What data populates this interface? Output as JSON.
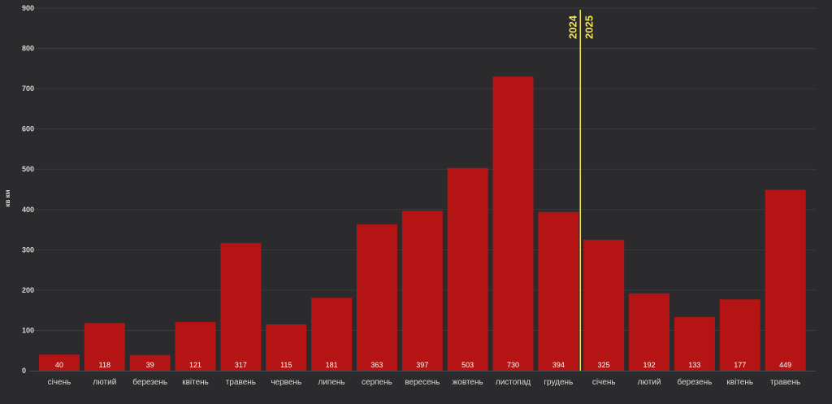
{
  "chart_data": {
    "type": "bar",
    "title": "",
    "ylabel": "кв км",
    "xlabel": "",
    "ylim": [
      0,
      900
    ],
    "yticks": [
      0,
      100,
      200,
      300,
      400,
      500,
      600,
      700,
      800,
      900
    ],
    "grid": true,
    "bar_color": "#b51414",
    "categories": [
      "січень",
      "лютий",
      "березень",
      "квітень",
      "травень",
      "червень",
      "липень",
      "серпень",
      "вересень",
      "жовтень",
      "листопад",
      "грудень",
      "січень",
      "лютий",
      "березень",
      "квітень",
      "травень"
    ],
    "values": [
      40,
      118,
      39,
      121,
      317,
      115,
      181,
      363,
      397,
      503,
      730,
      394,
      325,
      192,
      133,
      177,
      449
    ],
    "year_divider": {
      "after_index": 11,
      "left_label": "2024",
      "right_label": "2025",
      "color": "#f1e25a"
    }
  }
}
